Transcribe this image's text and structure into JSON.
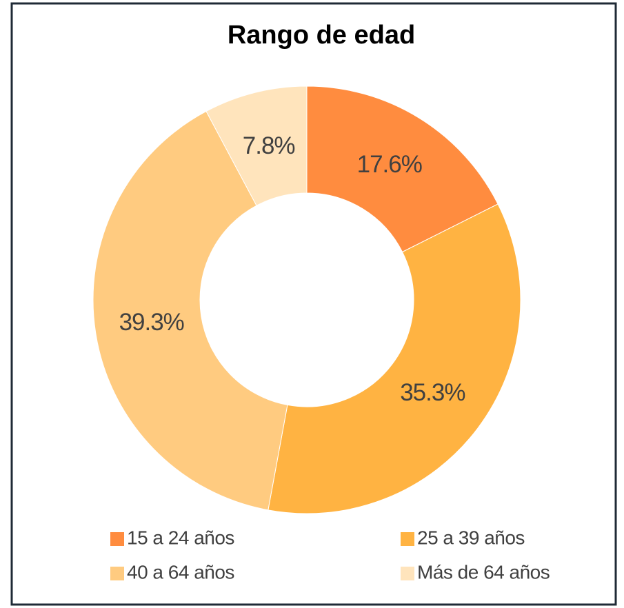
{
  "chart_data": {
    "type": "donut",
    "title": "Rango de edad",
    "categories": [
      "15 a 24 años",
      "25 a 39 años",
      "40 a 64 años",
      "Más de 64 años"
    ],
    "values": [
      17.6,
      35.3,
      39.3,
      7.8
    ],
    "value_labels": [
      "17.6%",
      "35.3%",
      "39.3%",
      "7.8%"
    ],
    "colors": [
      "#ff8c3f",
      "#ffb342",
      "#ffcb80",
      "#ffe4bc"
    ]
  }
}
